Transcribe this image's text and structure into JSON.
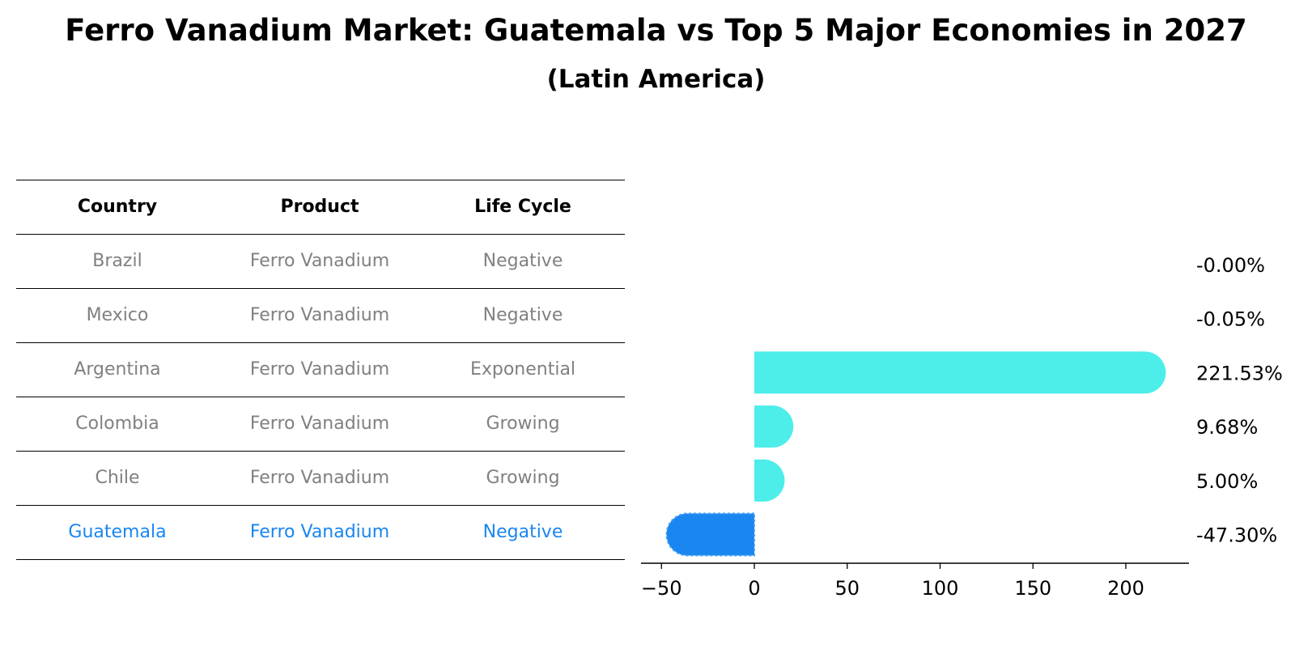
{
  "title": "Ferro Vanadium Market: Guatemala vs Top 5 Major Economies in 2027",
  "subtitle": "(Latin America)",
  "table": {
    "headers": [
      "Country",
      "Product",
      "Life Cycle"
    ],
    "rows": [
      {
        "country": "Brazil",
        "product": "Ferro Vanadium",
        "life_cycle": "Negative"
      },
      {
        "country": "Mexico",
        "product": "Ferro Vanadium",
        "life_cycle": "Negative"
      },
      {
        "country": "Argentina",
        "product": "Ferro Vanadium",
        "life_cycle": "Exponential"
      },
      {
        "country": "Colombia",
        "product": "Ferro Vanadium",
        "life_cycle": "Growing"
      },
      {
        "country": "Chile",
        "product": "Ferro Vanadium",
        "life_cycle": "Growing"
      },
      {
        "country": "Guatemala",
        "product": "Ferro Vanadium",
        "life_cycle": "Negative"
      }
    ]
  },
  "colors": {
    "highlight": "#1a86f0",
    "bar": "#4deee9",
    "muted_text": "#808080"
  },
  "chart_data": {
    "type": "bar",
    "orientation": "horizontal",
    "categories": [
      "Brazil",
      "Mexico",
      "Argentina",
      "Colombia",
      "Chile",
      "Guatemala"
    ],
    "values": [
      -0.0,
      -0.05,
      221.53,
      9.68,
      5.0,
      -47.3
    ],
    "value_labels": [
      "-0.00%",
      "-0.05%",
      "221.53%",
      "9.68%",
      "5.00%",
      "-47.30%"
    ],
    "highlight": "Guatemala",
    "xticks": [
      -50,
      0,
      50,
      100,
      150,
      200
    ],
    "xtick_labels": [
      "−50",
      "0",
      "50",
      "100",
      "150",
      "200"
    ],
    "xlim": [
      -61,
      234
    ],
    "xlabel": "",
    "ylabel": ""
  }
}
